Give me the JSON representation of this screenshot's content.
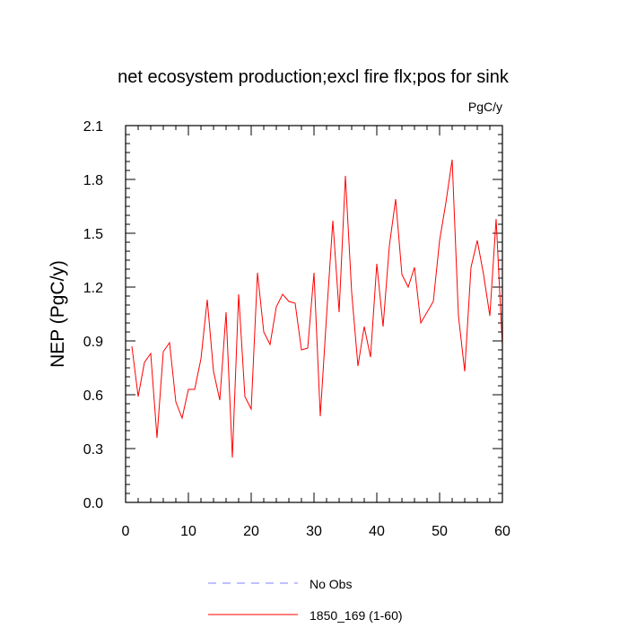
{
  "chart_data": {
    "type": "line",
    "title": "net ecosystem production;excl fire flx;pos for sink",
    "units_label": "PgC/y",
    "ylabel": "NEP  (PgC/y)",
    "xlabel": "",
    "xlim": [
      0,
      60
    ],
    "ylim": [
      0.0,
      2.1
    ],
    "xticks": [
      0,
      10,
      20,
      30,
      40,
      50,
      60
    ],
    "yticks": [
      0.0,
      0.3,
      0.6,
      0.9,
      1.2,
      1.5,
      1.8,
      2.1
    ],
    "ytick_labels": [
      "0.0",
      "0.3",
      "0.6",
      "0.9",
      "1.2",
      "1.5",
      "1.8",
      "2.1"
    ],
    "grid": false,
    "legend_position": "bottom-center",
    "series": [
      {
        "name": "1850_169 (1-60)",
        "color": "#ff0000",
        "style": "solid",
        "x": [
          1,
          2,
          3,
          4,
          5,
          6,
          7,
          8,
          9,
          10,
          11,
          12,
          13,
          14,
          15,
          16,
          17,
          18,
          19,
          20,
          21,
          22,
          23,
          24,
          25,
          26,
          27,
          28,
          29,
          30,
          31,
          32,
          33,
          34,
          35,
          36,
          37,
          38,
          39,
          40,
          41,
          42,
          43,
          44,
          45,
          46,
          47,
          48,
          49,
          50,
          51,
          52,
          53,
          54,
          55,
          56,
          57,
          58,
          59,
          60
        ],
        "values": [
          0.87,
          0.59,
          0.78,
          0.83,
          0.36,
          0.84,
          0.89,
          0.56,
          0.47,
          0.63,
          0.63,
          0.8,
          1.13,
          0.73,
          0.57,
          1.06,
          0.25,
          1.16,
          0.59,
          0.52,
          1.28,
          0.95,
          0.88,
          1.09,
          1.16,
          1.12,
          1.11,
          0.85,
          0.86,
          1.28,
          0.48,
          1.04,
          1.57,
          1.06,
          1.82,
          1.17,
          0.76,
          0.98,
          0.81,
          1.33,
          0.98,
          1.43,
          1.69,
          1.27,
          1.2,
          1.31,
          1.0,
          1.06,
          1.12,
          1.46,
          1.67,
          1.91,
          1.04,
          0.73,
          1.31,
          1.46,
          1.27,
          1.04,
          1.58,
          0.87
        ]
      }
    ],
    "legend": [
      {
        "label": "No Obs",
        "color": "#8080ff",
        "style": "dashed"
      },
      {
        "label": "1850_169 (1-60)",
        "color": "#ff0000",
        "style": "solid"
      }
    ]
  }
}
